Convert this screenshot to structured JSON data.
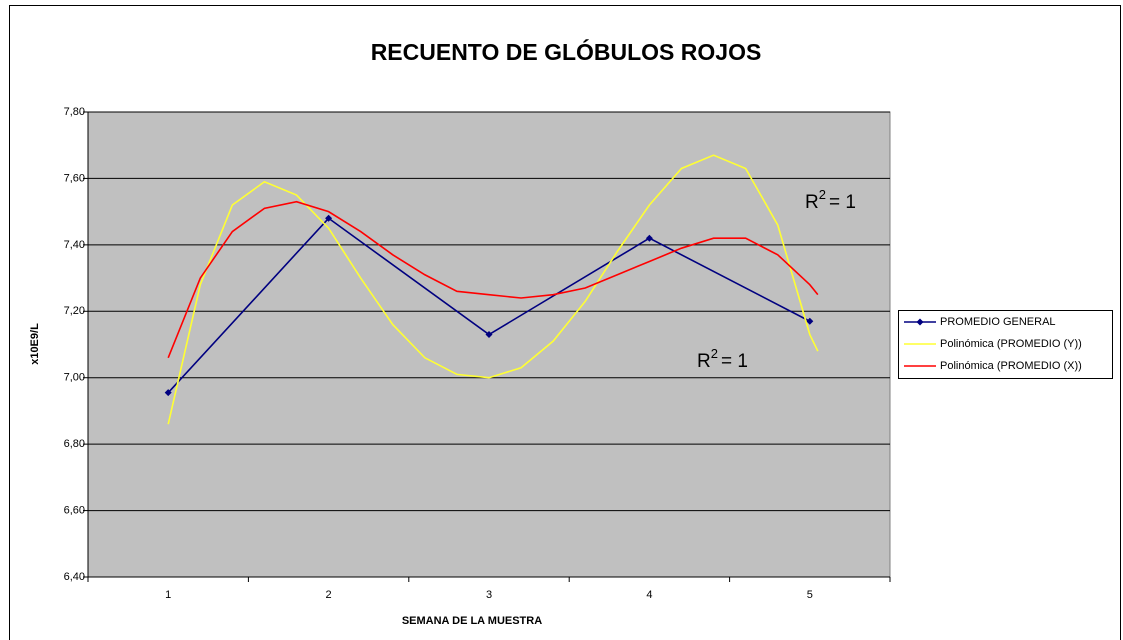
{
  "chart_data": {
    "type": "line",
    "title": "RECUENTO DE GLÓBULOS ROJOS",
    "y_label": "x10E9/L",
    "x_label": "SEMANA DE LA MUESTRA",
    "categories": [
      1,
      2,
      3,
      4,
      5
    ],
    "xlim": [
      0.5,
      5.5
    ],
    "ylim": [
      6.4,
      7.8
    ],
    "yticks": [
      {
        "value": 6.4,
        "label": "6,40"
      },
      {
        "value": 6.6,
        "label": "6,60"
      },
      {
        "value": 6.8,
        "label": "6,80"
      },
      {
        "value": 7.0,
        "label": "7,00"
      },
      {
        "value": 7.2,
        "label": "7,20"
      },
      {
        "value": 7.4,
        "label": "7,40"
      },
      {
        "value": 7.6,
        "label": "7,60"
      },
      {
        "value": 7.8,
        "label": "7,80"
      }
    ],
    "grid": true,
    "legend": "right",
    "series": [
      {
        "name": "PROMEDIO GENERAL",
        "color": "#000080",
        "markers": true,
        "x": [
          1,
          2,
          3,
          4,
          5
        ],
        "values": [
          6.955,
          7.48,
          7.13,
          7.42,
          7.17
        ]
      },
      {
        "name": "Polinómica (PROMEDIO (Y))",
        "color": "#ffff33",
        "markers": false,
        "x": [
          1.0,
          1.2,
          1.4,
          1.6,
          1.8,
          2.0,
          2.2,
          2.4,
          2.6,
          2.8,
          3.0,
          3.2,
          3.4,
          3.6,
          3.8,
          4.0,
          4.2,
          4.4,
          4.6,
          4.8,
          5.0,
          5.05
        ],
        "values": [
          6.86,
          7.28,
          7.52,
          7.59,
          7.55,
          7.45,
          7.3,
          7.16,
          7.06,
          7.01,
          7.0,
          7.03,
          7.11,
          7.23,
          7.38,
          7.52,
          7.63,
          7.67,
          7.63,
          7.46,
          7.13,
          7.08
        ]
      },
      {
        "name": "Polinómica (PROMEDIO (X))",
        "color": "#ff0000",
        "markers": false,
        "x": [
          1.0,
          1.2,
          1.4,
          1.6,
          1.8,
          2.0,
          2.2,
          2.4,
          2.6,
          2.8,
          3.0,
          3.2,
          3.4,
          3.6,
          3.8,
          4.0,
          4.2,
          4.4,
          4.6,
          4.8,
          5.0,
          5.05
        ],
        "values": [
          7.06,
          7.3,
          7.44,
          7.51,
          7.53,
          7.5,
          7.44,
          7.37,
          7.31,
          7.26,
          7.25,
          7.24,
          7.25,
          7.27,
          7.31,
          7.35,
          7.39,
          7.42,
          7.42,
          7.37,
          7.28,
          7.25
        ]
      }
    ],
    "annotations": [
      {
        "base": "R",
        "exp": "2",
        "tail": "= 1"
      },
      {
        "base": "R",
        "exp": "2",
        "tail": "= 1"
      }
    ]
  }
}
